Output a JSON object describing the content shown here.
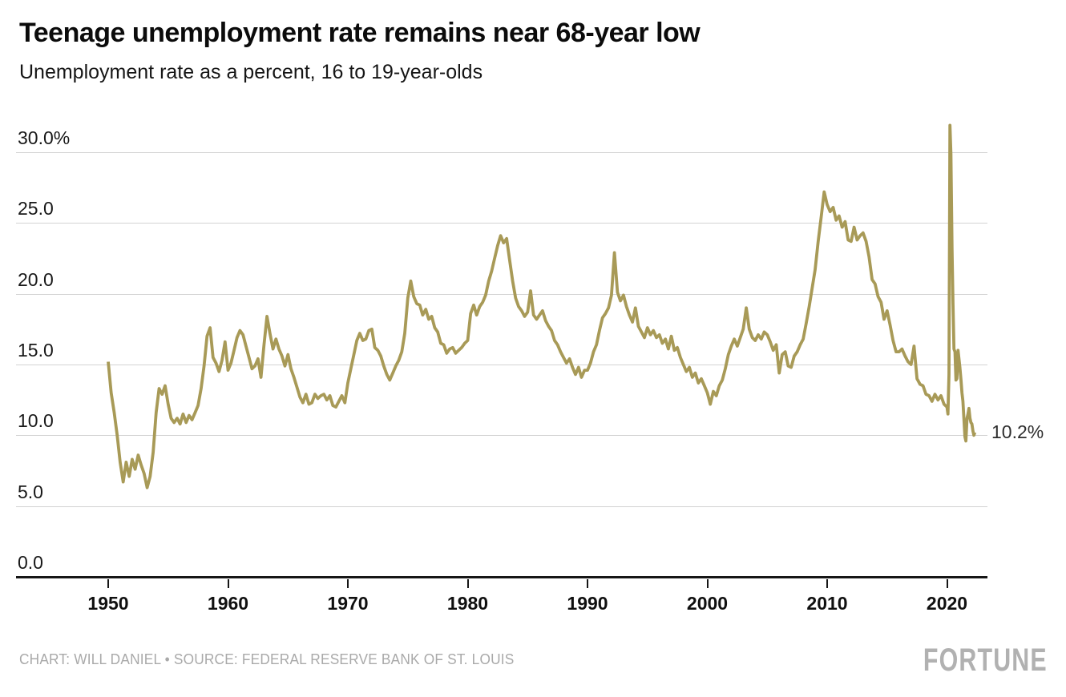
{
  "header": {
    "title": "Teenage unemployment rate remains near 68-year low",
    "subtitle": "Unemployment rate as a percent, 16 to 19-year-olds"
  },
  "footer": {
    "credit": "CHART: WILL DANIEL • SOURCE: FEDERAL RESERVE BANK OF ST. LOUIS",
    "brand": "FORTUNE"
  },
  "chart_data": {
    "type": "line",
    "title": "Teenage unemployment rate remains near 68-year low",
    "subtitle": "Unemployment rate as a percent, 16 to 19-year-olds",
    "line_color": "#a89a57",
    "grid": "horizontal",
    "legend": "none",
    "end_label": "10.2%",
    "end_value": 10.2,
    "xlim": [
      1942.3,
      2023.4
    ],
    "ylim": [
      0,
      32.5
    ],
    "x_axis": {
      "ticks": [
        1950,
        1960,
        1970,
        1980,
        1990,
        2000,
        2010,
        2020
      ]
    },
    "y_axis": {
      "ticks": [
        {
          "label": "30.0%",
          "value": 30
        },
        {
          "label": "25.0",
          "value": 25
        },
        {
          "label": "20.0",
          "value": 20
        },
        {
          "label": "15.0",
          "value": 15
        },
        {
          "label": "10.0",
          "value": 10
        },
        {
          "label": "5.0",
          "value": 5
        },
        {
          "label": "0.0",
          "value": 0
        }
      ]
    },
    "series": [
      {
        "name": "Unemployment rate, 16 to 19-year-olds (%)",
        "start_year": 1950,
        "step_years": 0.25,
        "values": [
          15.2,
          13.0,
          11.6,
          10.0,
          8.1,
          6.7,
          8.1,
          7.1,
          8.3,
          7.6,
          8.6,
          7.9,
          7.3,
          6.3,
          7.1,
          8.8,
          11.6,
          13.3,
          12.9,
          13.5,
          12.2,
          11.2,
          10.9,
          11.2,
          10.8,
          11.5,
          10.9,
          11.4,
          11.1,
          11.6,
          12.1,
          13.3,
          14.9,
          17.0,
          17.6,
          15.5,
          15.1,
          14.5,
          15.3,
          16.6,
          14.6,
          15.1,
          16.0,
          16.9,
          17.4,
          17.1,
          16.3,
          15.5,
          14.7,
          14.9,
          15.4,
          14.1,
          16.4,
          18.4,
          17.2,
          16.1,
          16.8,
          16.1,
          15.6,
          14.9,
          15.7,
          14.7,
          14.1,
          13.4,
          12.7,
          12.3,
          12.9,
          12.2,
          12.3,
          12.9,
          12.6,
          12.8,
          12.9,
          12.5,
          12.8,
          12.1,
          12.0,
          12.4,
          12.8,
          12.3,
          13.7,
          14.7,
          15.7,
          16.7,
          17.2,
          16.7,
          16.8,
          17.4,
          17.5,
          16.2,
          16.0,
          15.6,
          14.9,
          14.3,
          13.9,
          14.4,
          14.9,
          15.3,
          15.9,
          17.2,
          19.7,
          20.9,
          19.8,
          19.3,
          19.2,
          18.5,
          18.9,
          18.2,
          18.4,
          17.6,
          17.3,
          16.5,
          16.4,
          15.8,
          16.1,
          16.2,
          15.8,
          16.0,
          16.2,
          16.5,
          16.7,
          18.6,
          19.2,
          18.5,
          19.1,
          19.4,
          19.9,
          20.9,
          21.6,
          22.5,
          23.4,
          24.1,
          23.6,
          23.9,
          22.4,
          20.9,
          19.7,
          19.1,
          18.8,
          18.4,
          18.7,
          20.2,
          18.5,
          18.2,
          18.5,
          18.8,
          18.1,
          17.7,
          17.4,
          16.7,
          16.4,
          15.9,
          15.5,
          15.1,
          15.4,
          14.8,
          14.3,
          14.8,
          14.1,
          14.6,
          14.6,
          15.1,
          15.9,
          16.4,
          17.4,
          18.3,
          18.6,
          19.0,
          19.9,
          22.9,
          20.1,
          19.5,
          19.9,
          19.1,
          18.5,
          18.0,
          19.0,
          17.7,
          17.3,
          16.9,
          17.6,
          17.1,
          17.4,
          16.9,
          17.1,
          16.5,
          16.8,
          16.1,
          17.0,
          16.0,
          16.2,
          15.5,
          15.0,
          14.5,
          14.8,
          14.1,
          14.4,
          13.7,
          14.0,
          13.5,
          13.0,
          12.2,
          13.1,
          12.8,
          13.5,
          13.9,
          14.7,
          15.7,
          16.3,
          16.8,
          16.3,
          16.9,
          17.5,
          19.0,
          17.5,
          16.9,
          16.7,
          17.1,
          16.8,
          17.3,
          17.1,
          16.6,
          16.0,
          16.4,
          14.4,
          15.7,
          15.9,
          14.9,
          14.8,
          15.6,
          15.9,
          16.4,
          16.8,
          17.9,
          19.1,
          20.4,
          21.7,
          23.7,
          25.4,
          27.2,
          26.3,
          25.8,
          26.1,
          25.2,
          25.5,
          24.7,
          25.1,
          23.8,
          23.7,
          24.7,
          23.8,
          24.1,
          24.3,
          23.7,
          22.6,
          21.0,
          20.7,
          19.8,
          19.4,
          18.2,
          18.8,
          17.8,
          16.7,
          15.9,
          15.9,
          16.1,
          15.6,
          15.2,
          15.0,
          16.3,
          14.0,
          13.6,
          13.5,
          12.9,
          12.8,
          12.4,
          12.9,
          12.5,
          12.8,
          12.2
        ],
        "extra_points": [
          [
            2020.0,
            12.0
          ],
          [
            2020.08,
            11.5
          ],
          [
            2020.17,
            14.3
          ],
          [
            2020.25,
            31.9
          ],
          [
            2020.33,
            29.9
          ],
          [
            2020.42,
            23.2
          ],
          [
            2020.5,
            19.3
          ],
          [
            2020.58,
            16.1
          ],
          [
            2020.67,
            15.9
          ],
          [
            2020.75,
            13.9
          ],
          [
            2020.83,
            14.0
          ],
          [
            2020.92,
            16.0
          ],
          [
            2021.08,
            14.8
          ],
          [
            2021.17,
            13.9
          ],
          [
            2021.25,
            13.0
          ],
          [
            2021.33,
            12.4
          ],
          [
            2021.5,
            9.9
          ],
          [
            2021.58,
            9.6
          ],
          [
            2021.67,
            11.2
          ],
          [
            2021.75,
            11.5
          ],
          [
            2021.83,
            11.9
          ],
          [
            2021.92,
            11.2
          ],
          [
            2022.0,
            10.9
          ],
          [
            2022.08,
            10.8
          ],
          [
            2022.17,
            10.3
          ],
          [
            2022.25,
            10.0
          ],
          [
            2022.33,
            10.2
          ]
        ]
      }
    ]
  }
}
